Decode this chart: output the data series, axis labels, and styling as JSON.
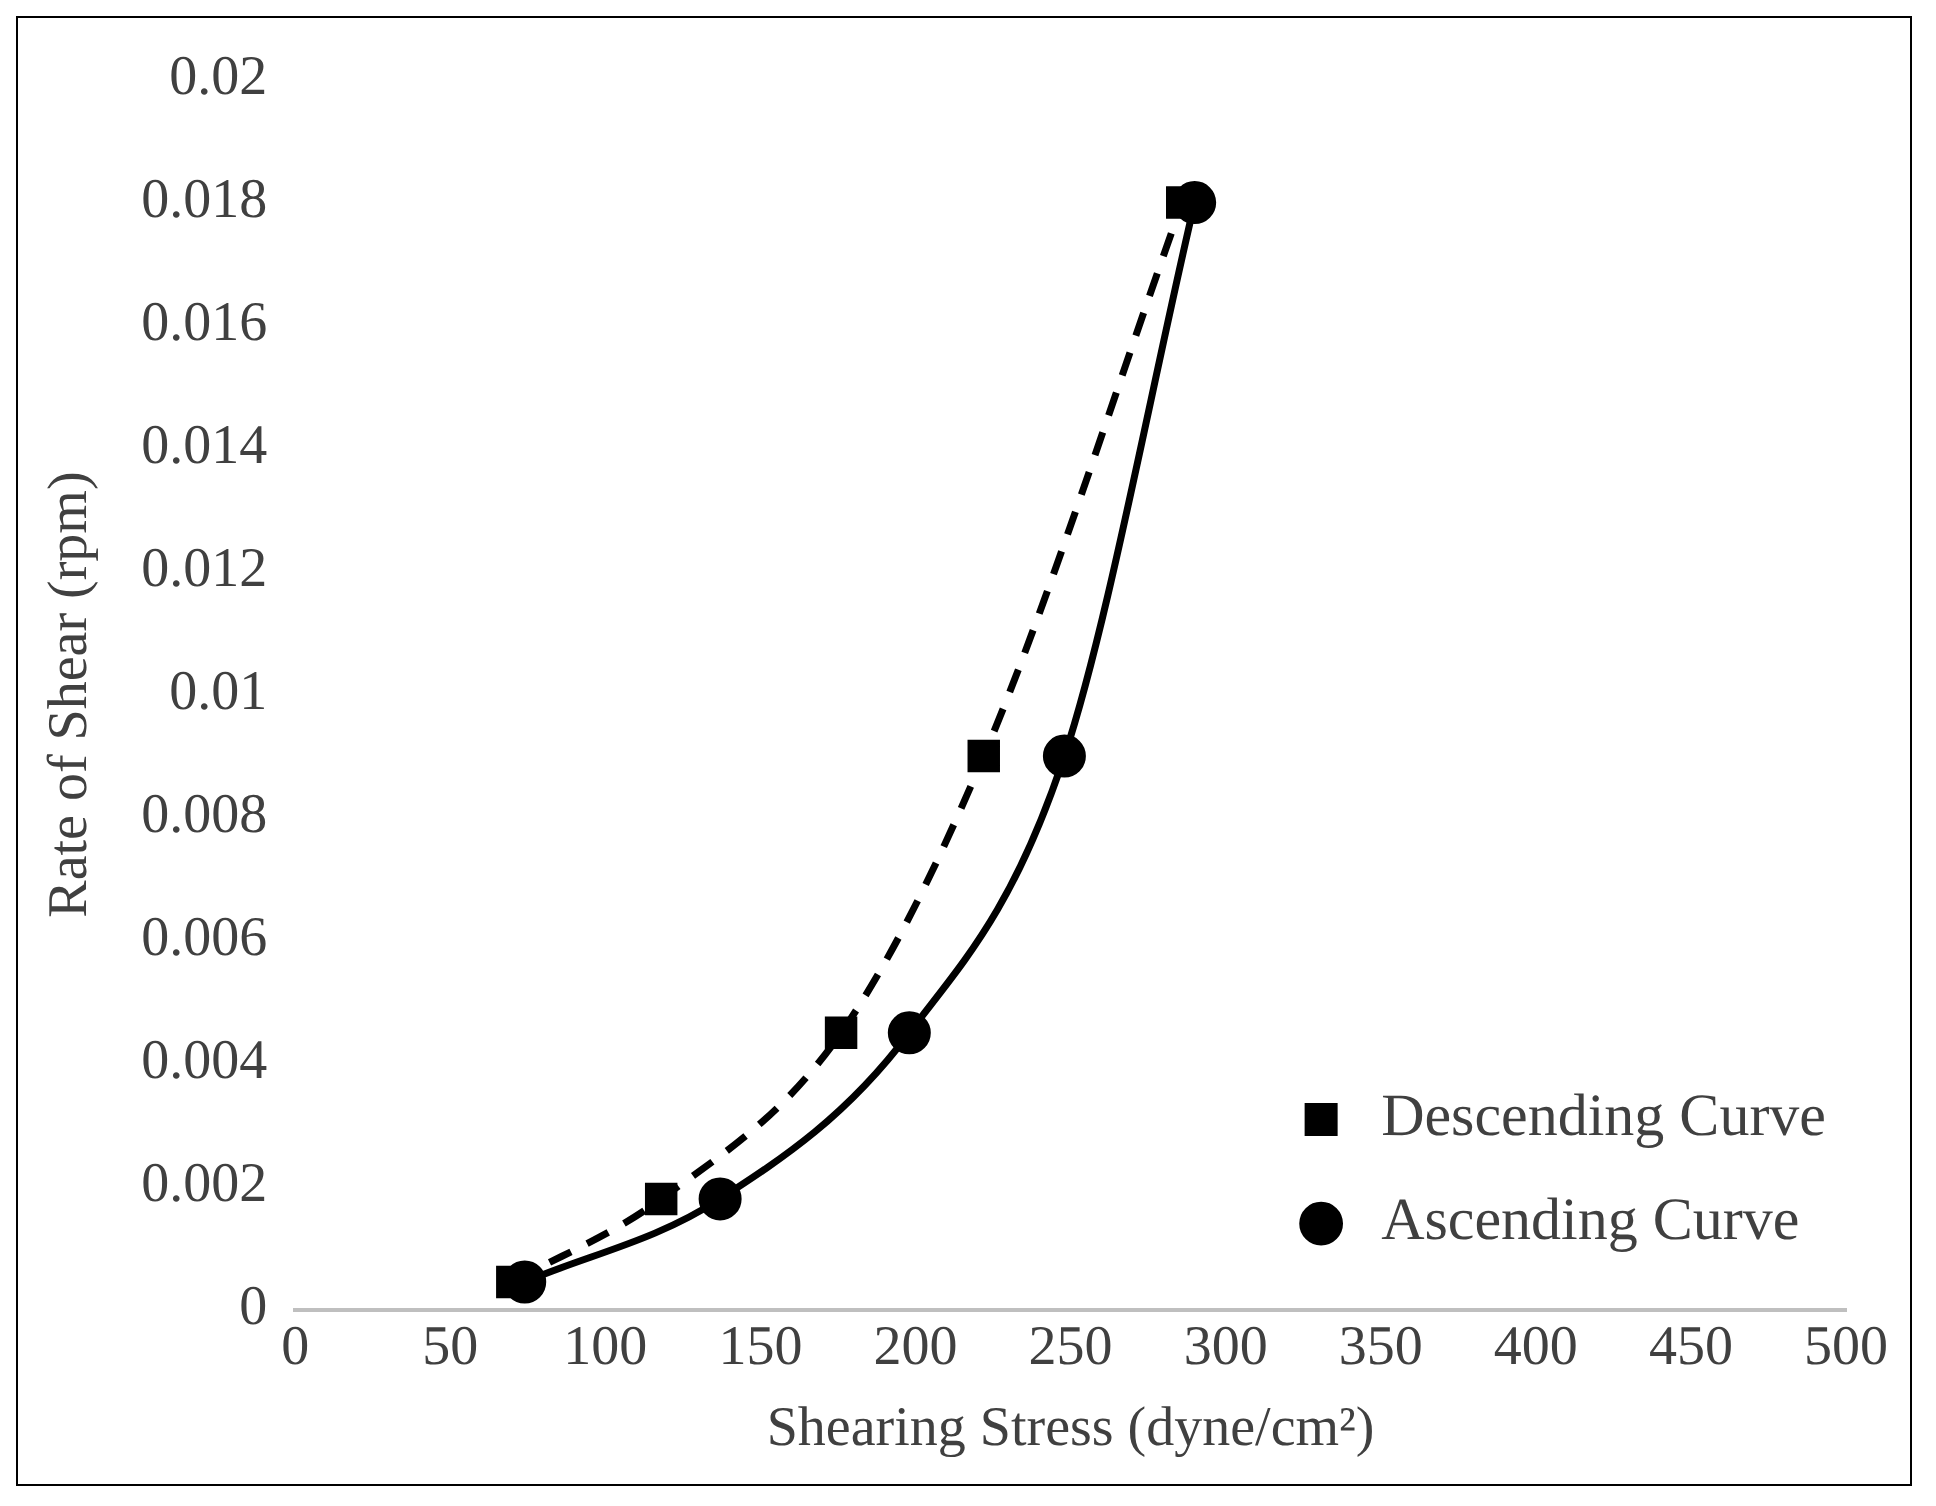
{
  "chart_data": {
    "type": "line",
    "xlabel": "Shearing Stress (dyne/cm²)",
    "ylabel": "Rate of Shear (rpm)",
    "xlim": [
      0,
      500
    ],
    "xticks": [
      0,
      50,
      100,
      150,
      200,
      250,
      300,
      350,
      400,
      450,
      500
    ],
    "ylim": [
      0,
      0.02
    ],
    "yticks": [
      0,
      0.002,
      0.004,
      0.006,
      0.008,
      0.01,
      0.012,
      0.014,
      0.016,
      0.018,
      0.02
    ],
    "grid": false,
    "legend": "bottom right",
    "series": [
      {
        "name": "Ascending Curve",
        "color": "#000000",
        "marker": "circle",
        "line_style": "solid",
        "x": [
          74,
          137,
          198,
          248,
          290
        ],
        "values": [
          0.00045,
          0.0018,
          0.0045,
          0.009,
          0.018
        ]
      },
      {
        "name": "Descending Curve",
        "color": "#000000",
        "marker": "square",
        "line_style": "dashed",
        "x": [
          70,
          118,
          176,
          222,
          286
        ],
        "values": [
          0.00045,
          0.0018,
          0.0045,
          0.009,
          0.018
        ]
      }
    ]
  }
}
